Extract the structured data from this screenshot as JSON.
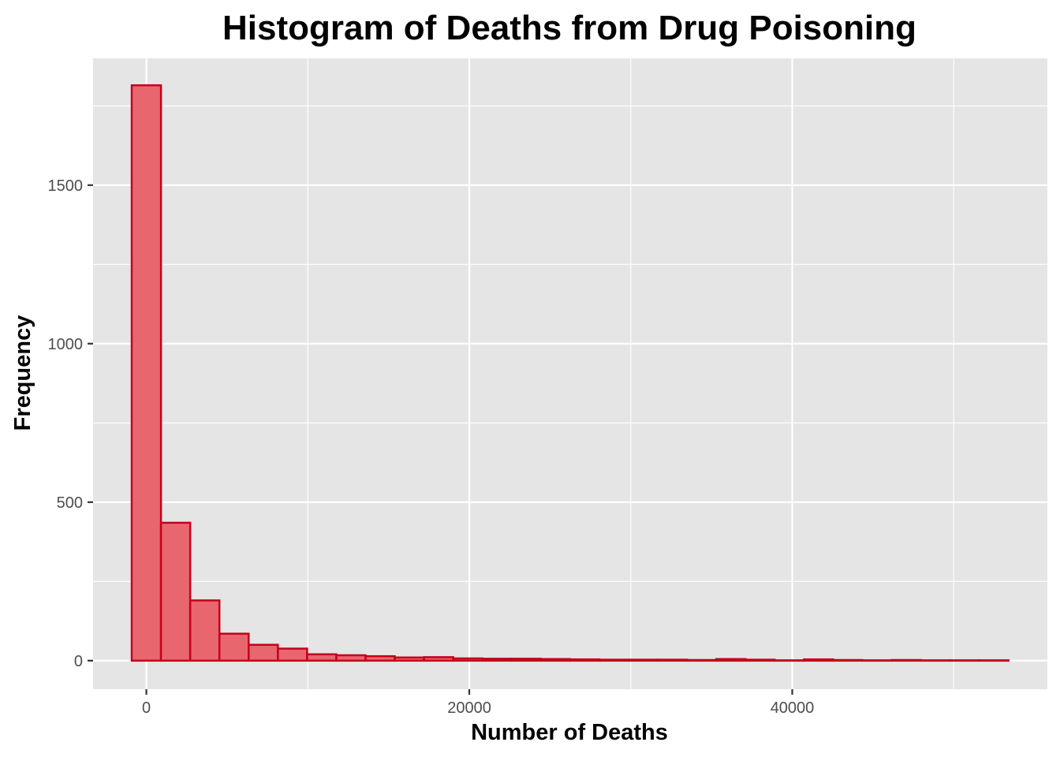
{
  "chart_data": {
    "type": "bar",
    "title": "Histogram of Deaths from Drug Poisoning",
    "xlabel": "Number of Deaths",
    "ylabel": "Frequency",
    "xlim": [
      -3300,
      55800
    ],
    "ylim": [
      -90,
      1900
    ],
    "x_ticks": [
      0,
      20000,
      40000
    ],
    "x_tick_labels": [
      "0",
      "20000",
      "40000"
    ],
    "y_ticks": [
      0,
      500,
      1000,
      1500
    ],
    "y_tick_labels": [
      "0",
      "500",
      "1000",
      "1500"
    ],
    "bin_width": 1810,
    "bin_centers": [
      0,
      1810,
      3620,
      5430,
      7240,
      9050,
      10860,
      12670,
      14480,
      16290,
      18100,
      19910,
      21720,
      23530,
      25340,
      27150,
      28960,
      30770,
      32580,
      34390,
      36200,
      38010,
      39820,
      41630,
      43440,
      45250,
      47060,
      48870,
      50680,
      52490
    ],
    "values": [
      1815,
      435,
      190,
      85,
      50,
      38,
      20,
      17,
      14,
      10,
      11,
      7,
      6,
      6,
      5,
      4,
      3,
      3,
      3,
      2,
      5,
      3,
      1,
      4,
      2,
      1,
      2,
      1,
      1,
      1
    ],
    "bar_fill": "#e8676e",
    "bar_stroke": "#c4001b",
    "panel_background": "#e5e5e5",
    "grid_color": "#ffffff",
    "grid": true,
    "legend": "none"
  }
}
